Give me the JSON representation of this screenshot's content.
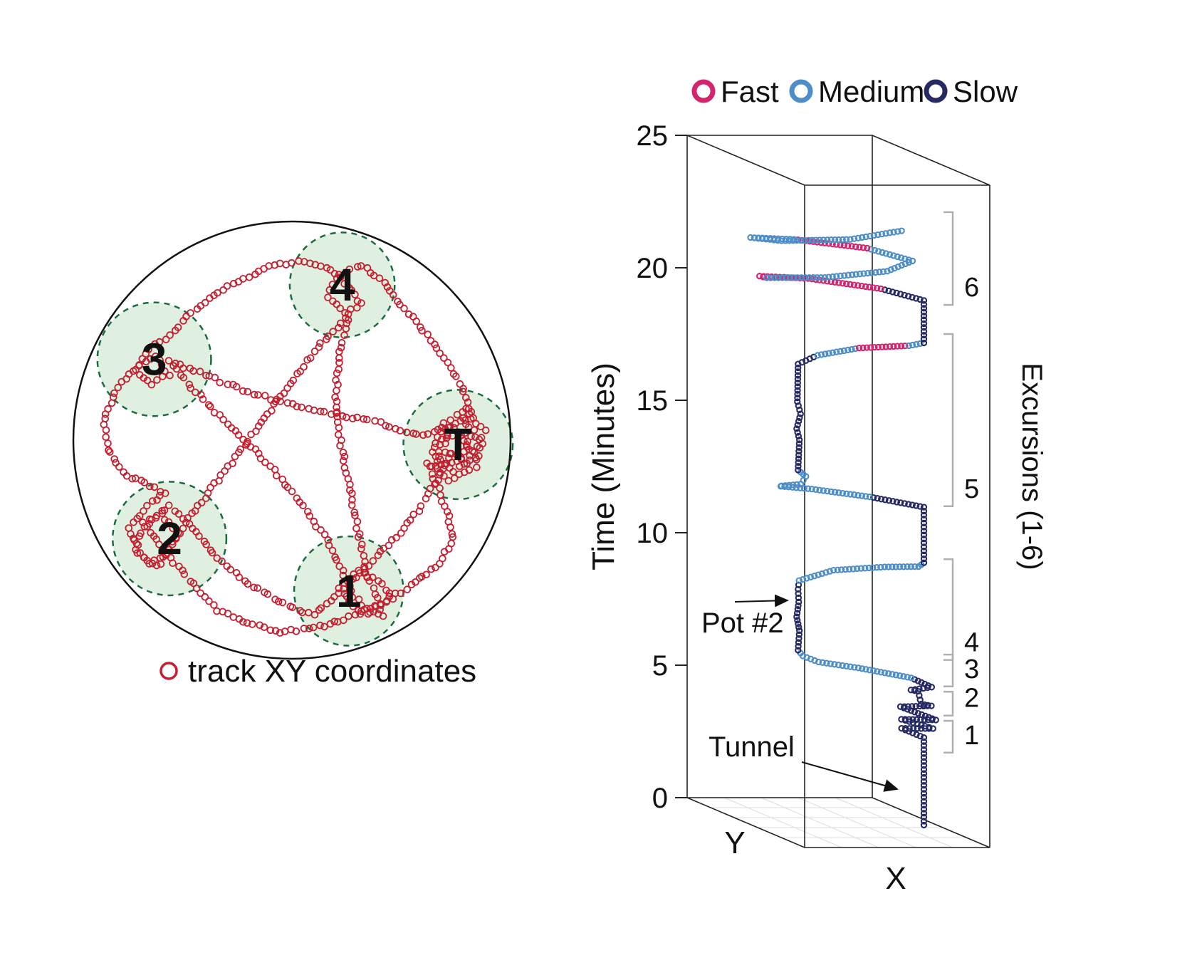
{
  "chart_data": [
    {
      "type": "scatter",
      "description": "Top-down circular arena, animal track shown as open red circles, food pots as dashed green circles",
      "marker": "open-circle",
      "track_color": "#c41e2f",
      "legend": {
        "label": "track XY coordinates",
        "marker_color": "#c41e2f"
      },
      "arena": {
        "shape": "circle",
        "border_color": "#111111"
      },
      "pot_style": {
        "fill": "#ddeedd",
        "border": "#1c6b40",
        "border_style": "dashed"
      },
      "pots": [
        {
          "label": "1",
          "x": 0.26,
          "y": 0.69,
          "r": 0.25
        },
        {
          "label": "2",
          "x": -0.56,
          "y": 0.45,
          "r": 0.26
        },
        {
          "label": "3",
          "x": -0.63,
          "y": -0.37,
          "r": 0.26
        },
        {
          "label": "4",
          "x": 0.23,
          "y": -0.71,
          "r": 0.24
        },
        {
          "label": "T",
          "x": 0.76,
          "y": 0.02,
          "r": 0.25
        }
      ],
      "track_waypoints": [
        [
          0.78,
          -0.1
        ],
        [
          0.86,
          0.0
        ],
        [
          0.8,
          0.1
        ],
        [
          0.7,
          0.05
        ],
        [
          0.72,
          -0.06
        ],
        [
          0.82,
          -0.02
        ],
        [
          0.76,
          0.1
        ],
        [
          0.66,
          0.12
        ],
        [
          0.68,
          0.0
        ],
        [
          0.76,
          -0.04
        ],
        [
          0.84,
          0.08
        ],
        [
          0.74,
          0.14
        ],
        [
          0.64,
          0.06
        ],
        [
          0.7,
          -0.08
        ],
        [
          0.8,
          -0.14
        ],
        [
          0.88,
          -0.04
        ],
        [
          0.84,
          0.12
        ],
        [
          0.72,
          0.18
        ],
        [
          0.62,
          0.1
        ],
        [
          0.7,
          0.3
        ],
        [
          0.74,
          0.45
        ],
        [
          0.66,
          0.58
        ],
        [
          0.52,
          0.68
        ],
        [
          0.38,
          0.76
        ],
        [
          0.24,
          0.82
        ],
        [
          0.1,
          0.86
        ],
        [
          -0.05,
          0.88
        ],
        [
          -0.2,
          0.84
        ],
        [
          -0.34,
          0.78
        ],
        [
          -0.45,
          0.66
        ],
        [
          -0.54,
          0.56
        ],
        [
          -0.62,
          0.46
        ],
        [
          -0.68,
          0.38
        ],
        [
          -0.6,
          0.34
        ],
        [
          -0.52,
          0.42
        ],
        [
          -0.58,
          0.52
        ],
        [
          -0.66,
          0.56
        ],
        [
          -0.72,
          0.46
        ],
        [
          -0.64,
          0.36
        ],
        [
          -0.56,
          0.3
        ],
        [
          -0.48,
          0.38
        ],
        [
          -0.54,
          0.48
        ],
        [
          -0.62,
          0.58
        ],
        [
          -0.7,
          0.52
        ],
        [
          -0.74,
          0.4
        ],
        [
          -0.66,
          0.3
        ],
        [
          -0.58,
          0.24
        ],
        [
          -0.76,
          0.16
        ],
        [
          -0.84,
          0.04
        ],
        [
          -0.86,
          -0.1
        ],
        [
          -0.8,
          -0.24
        ],
        [
          -0.7,
          -0.34
        ],
        [
          -0.62,
          -0.38
        ],
        [
          -0.56,
          -0.3
        ],
        [
          -0.64,
          -0.26
        ],
        [
          -0.72,
          -0.32
        ],
        [
          -0.66,
          -0.42
        ],
        [
          -0.58,
          -0.46
        ],
        [
          -0.48,
          -0.56
        ],
        [
          -0.36,
          -0.66
        ],
        [
          -0.22,
          -0.74
        ],
        [
          -0.08,
          -0.8
        ],
        [
          0.06,
          -0.82
        ],
        [
          0.18,
          -0.78
        ],
        [
          0.26,
          -0.7
        ],
        [
          0.32,
          -0.62
        ],
        [
          0.24,
          -0.58
        ],
        [
          0.16,
          -0.66
        ],
        [
          0.22,
          -0.76
        ],
        [
          0.32,
          -0.8
        ],
        [
          0.42,
          -0.72
        ],
        [
          0.5,
          -0.62
        ],
        [
          0.6,
          -0.5
        ],
        [
          0.7,
          -0.38
        ],
        [
          0.78,
          -0.24
        ],
        [
          0.82,
          -0.1
        ],
        [
          0.6,
          -0.02
        ],
        [
          0.4,
          -0.08
        ],
        [
          0.2,
          -0.12
        ],
        [
          0.0,
          -0.16
        ],
        [
          -0.2,
          -0.22
        ],
        [
          -0.4,
          -0.3
        ],
        [
          -0.56,
          -0.36
        ],
        [
          -0.44,
          -0.22
        ],
        [
          -0.28,
          -0.06
        ],
        [
          -0.12,
          0.1
        ],
        [
          0.04,
          0.28
        ],
        [
          0.16,
          0.46
        ],
        [
          0.24,
          0.62
        ],
        [
          0.28,
          0.72
        ],
        [
          0.36,
          0.78
        ],
        [
          0.46,
          0.72
        ],
        [
          0.4,
          0.64
        ],
        [
          0.3,
          0.6
        ],
        [
          0.22,
          0.68
        ],
        [
          0.3,
          0.78
        ],
        [
          0.42,
          0.8
        ],
        [
          0.34,
          0.6
        ],
        [
          0.3,
          0.4
        ],
        [
          0.26,
          0.2
        ],
        [
          0.22,
          0.0
        ],
        [
          0.2,
          -0.2
        ],
        [
          0.22,
          -0.4
        ],
        [
          0.26,
          -0.58
        ],
        [
          0.1,
          -0.4
        ],
        [
          -0.05,
          -0.2
        ],
        [
          -0.2,
          0.0
        ],
        [
          -0.35,
          0.2
        ],
        [
          -0.48,
          0.36
        ],
        [
          -0.36,
          0.52
        ],
        [
          -0.22,
          0.64
        ],
        [
          -0.06,
          0.74
        ],
        [
          0.1,
          0.8
        ],
        [
          0.28,
          0.64
        ],
        [
          0.44,
          0.48
        ],
        [
          0.58,
          0.32
        ],
        [
          0.68,
          0.16
        ],
        [
          0.74,
          0.04
        ]
      ]
    },
    {
      "type": "line3d",
      "description": "3D trajectory of position over time, open circles colored by instantaneous speed",
      "zlabel": "Time (Minutes)",
      "xlabel": "X",
      "floor_axis_label": "Y",
      "right_axis_label": "Excursions (1-6)",
      "zticks": [
        0,
        5,
        10,
        15,
        20,
        25
      ],
      "zlim": [
        0,
        25
      ],
      "legend": [
        {
          "label": "Fast",
          "color": "#d4246e"
        },
        {
          "label": "Medium",
          "color": "#4e8ec8"
        },
        {
          "label": "Slow",
          "color": "#262a63"
        }
      ],
      "annotations": [
        {
          "text": "Pot #2"
        },
        {
          "text": "Tunnel"
        }
      ],
      "excursion_brackets": [
        {
          "label": "1",
          "t0": 1.7,
          "t1": 2.9
        },
        {
          "label": "2",
          "t0": 3.1,
          "t1": 4.0
        },
        {
          "label": "3",
          "t0": 4.2,
          "t1": 5.4
        },
        {
          "label": "4",
          "t0": 5.2,
          "t1": 9.0
        },
        {
          "label": "5",
          "t0": 11.0,
          "t1": 17.5
        },
        {
          "label": "6",
          "t0": 18.6,
          "t1": 22.1
        }
      ],
      "trajectory": [
        [
          0.0,
          0.93,
          0.55,
          "slow"
        ],
        [
          3.3,
          0.93,
          0.55,
          "slow"
        ],
        [
          3.5,
          0.86,
          0.47,
          "slow"
        ],
        [
          3.7,
          0.96,
          0.58,
          "slow"
        ],
        [
          3.9,
          0.84,
          0.5,
          "slow"
        ],
        [
          4.1,
          0.95,
          0.62,
          "slow"
        ],
        [
          4.3,
          0.86,
          0.46,
          "slow"
        ],
        [
          4.5,
          0.97,
          0.55,
          "slow"
        ],
        [
          4.7,
          0.87,
          0.62,
          "slow"
        ],
        [
          4.9,
          0.95,
          0.47,
          "slow"
        ],
        [
          5.1,
          0.86,
          0.55,
          "slow"
        ],
        [
          5.3,
          0.94,
          0.6,
          "slow"
        ],
        [
          5.5,
          0.88,
          0.52,
          "medium"
        ],
        [
          5.8,
          0.62,
          0.48,
          "medium"
        ],
        [
          6.1,
          0.38,
          0.52,
          "medium"
        ],
        [
          6.4,
          0.27,
          0.56,
          "medium"
        ],
        [
          6.6,
          0.25,
          0.55,
          "slow"
        ],
        [
          7.3,
          0.27,
          0.53,
          "slow"
        ],
        [
          7.9,
          0.23,
          0.57,
          "slow"
        ],
        [
          8.4,
          0.26,
          0.54,
          "slow"
        ],
        [
          8.9,
          0.25,
          0.55,
          "slow"
        ],
        [
          9.1,
          0.3,
          0.48,
          "medium"
        ],
        [
          9.3,
          0.55,
          0.38,
          "medium"
        ],
        [
          9.5,
          0.8,
          0.42,
          "medium"
        ],
        [
          9.7,
          0.92,
          0.52,
          "medium"
        ],
        [
          9.9,
          0.93,
          0.55,
          "slow"
        ],
        [
          12.0,
          0.93,
          0.55,
          "slow"
        ],
        [
          12.2,
          0.7,
          0.45,
          "medium"
        ],
        [
          12.4,
          0.42,
          0.4,
          "medium"
        ],
        [
          12.6,
          0.22,
          0.45,
          "medium"
        ],
        [
          12.8,
          0.16,
          0.55,
          "medium"
        ],
        [
          13.0,
          0.22,
          0.62,
          "medium"
        ],
        [
          13.2,
          0.28,
          0.57,
          "medium"
        ],
        [
          13.4,
          0.25,
          0.55,
          "slow"
        ],
        [
          14.5,
          0.27,
          0.53,
          "slow"
        ],
        [
          15.0,
          0.23,
          0.57,
          "slow"
        ],
        [
          15.5,
          0.27,
          0.54,
          "slow"
        ],
        [
          16.0,
          0.24,
          0.56,
          "slow"
        ],
        [
          17.4,
          0.25,
          0.55,
          "slow"
        ],
        [
          17.6,
          0.4,
          0.48,
          "medium"
        ],
        [
          17.8,
          0.65,
          0.44,
          "fast"
        ],
        [
          18.0,
          0.88,
          0.5,
          "medium"
        ],
        [
          18.2,
          0.93,
          0.55,
          "slow"
        ],
        [
          19.8,
          0.93,
          0.55,
          "slow"
        ],
        [
          20.0,
          0.78,
          0.42,
          "fast"
        ],
        [
          20.2,
          0.45,
          0.32,
          "fast"
        ],
        [
          20.4,
          0.15,
          0.38,
          "fast"
        ],
        [
          20.6,
          0.1,
          0.52,
          "medium"
        ],
        [
          20.8,
          0.35,
          0.62,
          "medium"
        ],
        [
          21.0,
          0.7,
          0.6,
          "medium"
        ],
        [
          21.2,
          0.9,
          0.5,
          "medium"
        ],
        [
          21.4,
          0.75,
          0.35,
          "fast"
        ],
        [
          21.6,
          0.4,
          0.28,
          "medium"
        ],
        [
          21.8,
          0.12,
          0.35,
          "medium"
        ],
        [
          22.0,
          0.18,
          0.52,
          "medium"
        ],
        [
          22.2,
          0.5,
          0.6,
          "medium"
        ],
        [
          22.4,
          0.85,
          0.52,
          "medium"
        ]
      ]
    }
  ]
}
